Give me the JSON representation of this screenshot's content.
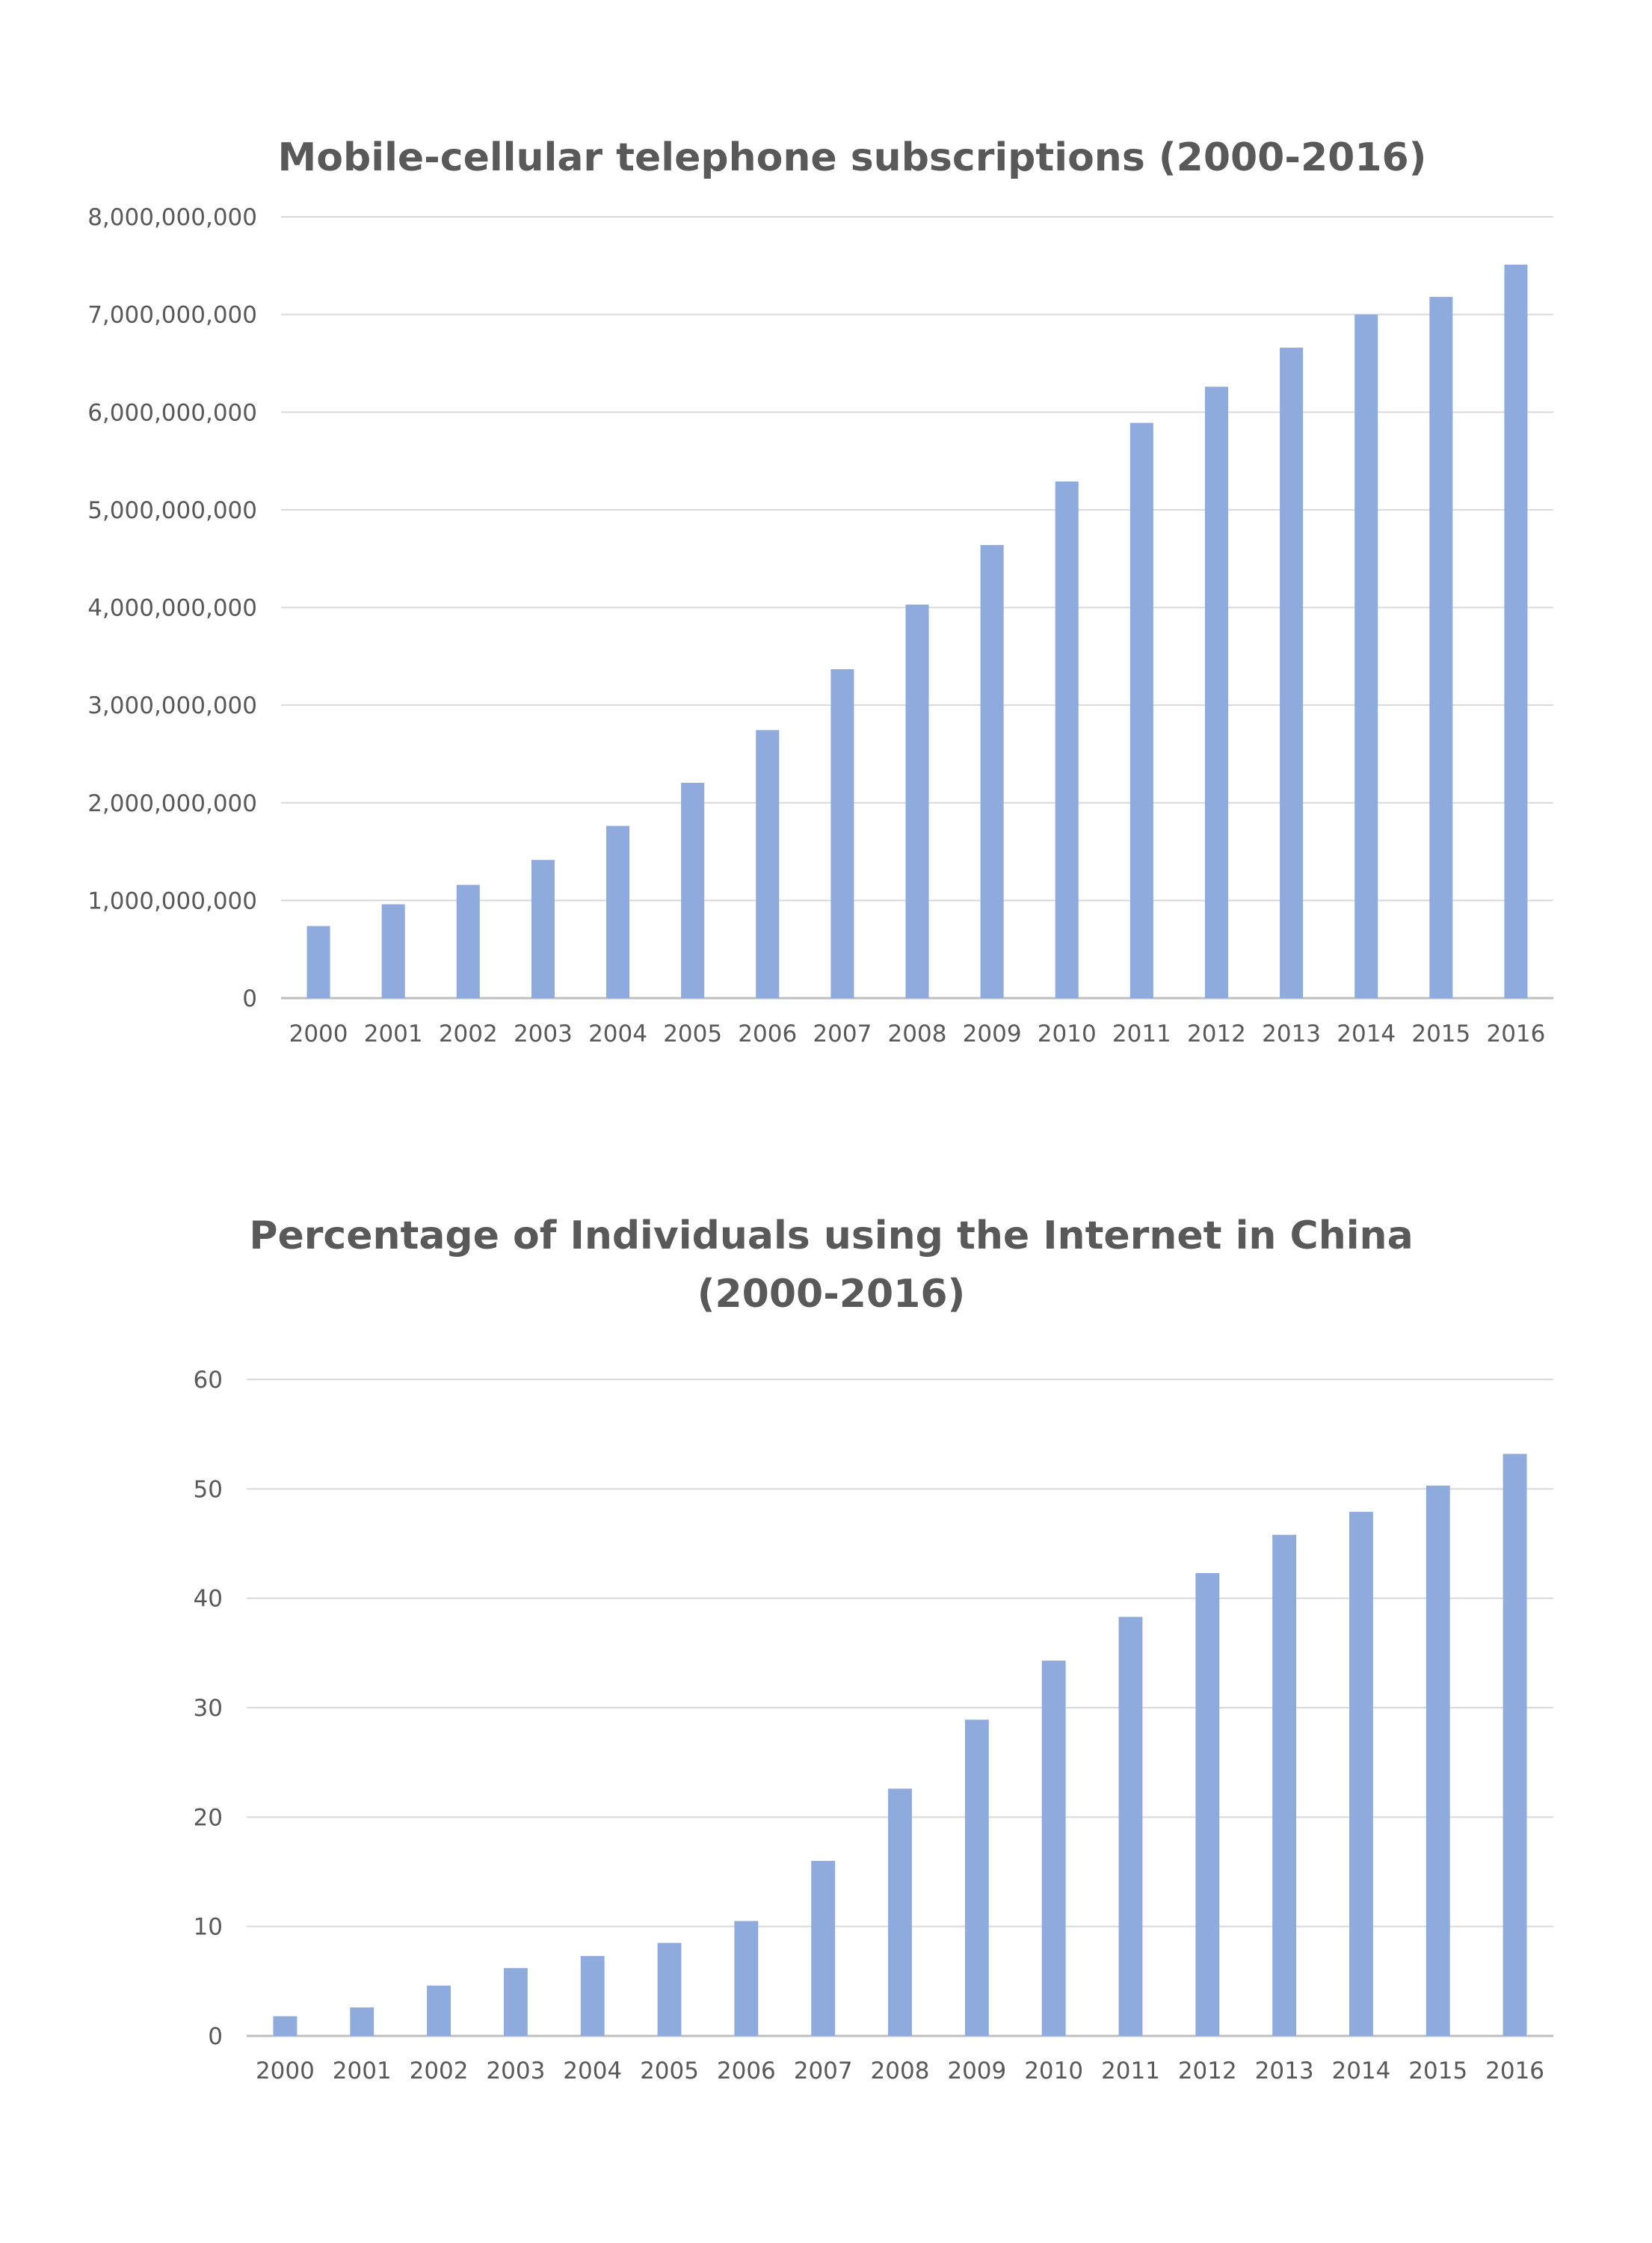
{
  "chart_data": [
    {
      "type": "bar",
      "title": "Mobile-cellular telephone subscriptions (2000-2016)",
      "title_lines": [
        "Mobile-cellular telephone subscriptions (2000-2016)"
      ],
      "categories": [
        "2000",
        "2001",
        "2002",
        "2003",
        "2004",
        "2005",
        "2006",
        "2007",
        "2008",
        "2009",
        "2010",
        "2011",
        "2012",
        "2013",
        "2014",
        "2015",
        "2016"
      ],
      "values": [
        738000000,
        961000000,
        1160000000,
        1415000000,
        1764000000,
        2205000000,
        2745000000,
        3368000000,
        4030000000,
        4640000000,
        5290000000,
        5890000000,
        6260000000,
        6660000000,
        7000000000,
        7180000000,
        7510000000
      ],
      "y_ticks": [
        "0",
        "1,000,000,000",
        "2,000,000,000",
        "3,000,000,000",
        "4,000,000,000",
        "5,000,000,000",
        "6,000,000,000",
        "7,000,000,000",
        "8,000,000,000"
      ],
      "ylim": [
        0,
        8000000000
      ],
      "xlabel": "",
      "ylabel": "",
      "grid": true,
      "legend": "none",
      "bar_color": "#8faadc"
    },
    {
      "type": "bar",
      "title": "Percentage of Individuals using the Internet in China (2000-2016)",
      "title_lines": [
        "Percentage of Individuals using the Internet in China",
        "(2000-2016)"
      ],
      "categories": [
        "2000",
        "2001",
        "2002",
        "2003",
        "2004",
        "2005",
        "2006",
        "2007",
        "2008",
        "2009",
        "2010",
        "2011",
        "2012",
        "2013",
        "2014",
        "2015",
        "2016"
      ],
      "values": [
        1.8,
        2.6,
        4.6,
        6.2,
        7.3,
        8.5,
        10.5,
        16.0,
        22.6,
        28.9,
        34.3,
        38.3,
        42.3,
        45.8,
        47.9,
        50.3,
        53.2
      ],
      "y_ticks": [
        "0",
        "10",
        "20",
        "30",
        "40",
        "50",
        "60"
      ],
      "ylim": [
        0,
        60
      ],
      "xlabel": "",
      "ylabel": "",
      "grid": true,
      "legend": "none",
      "bar_color": "#8faadc"
    }
  ],
  "colors": {
    "bar": "#8faadc",
    "grid": "#d9d9d9",
    "axis": "#bfbfbf",
    "text": "#595959"
  }
}
